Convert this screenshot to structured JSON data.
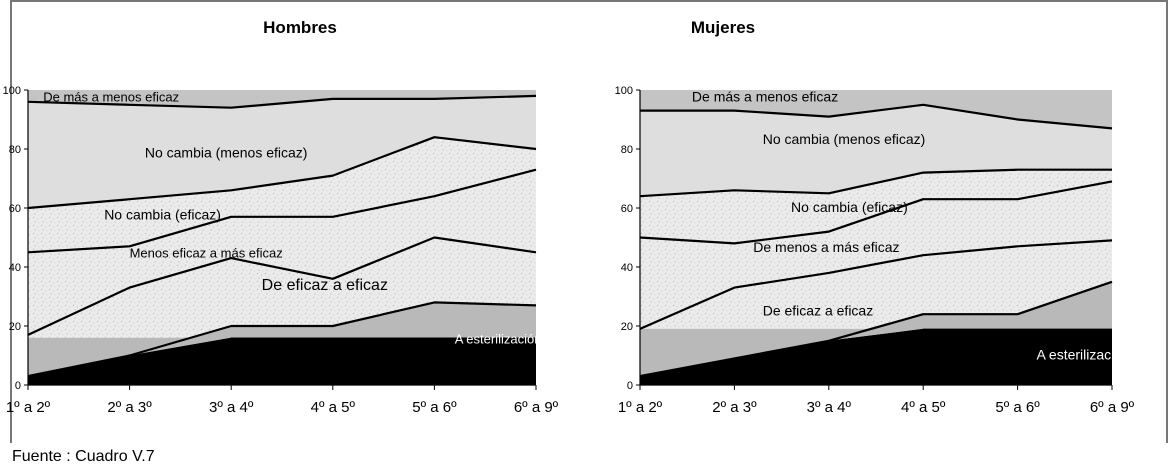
{
  "source": "Fuente : Cuadro V.7",
  "colors": {
    "top_band": "#c4c4c4",
    "light_band": "#dedede",
    "speckled_band": "#ebebeb",
    "sterilization_light": "#b9b9b9",
    "sterilization_dark": "#000000",
    "line": "#000000"
  },
  "chart_data": [
    {
      "type": "area",
      "title": "Hombres",
      "categories": [
        "1º a 2º",
        "2º a 3º",
        "3º a 4º",
        "4º a 5º",
        "5º a 6º",
        "6º a 9º"
      ],
      "ylim": [
        0,
        100
      ],
      "yticks": [
        0,
        20,
        40,
        60,
        80,
        100
      ],
      "grid": false,
      "boundaries": [
        {
          "name": "De eficaz a eficaz (lower)",
          "values": [
            3,
            10,
            20,
            20,
            28,
            27
          ]
        },
        {
          "name": "Menos eficaz a más eficaz (lower)",
          "values": [
            17,
            33,
            43,
            36,
            50,
            45
          ]
        },
        {
          "name": "No cambia (eficaz) (lower)",
          "values": [
            45,
            47,
            57,
            57,
            64,
            73
          ]
        },
        {
          "name": "No cambia (menos eficaz) (lower)",
          "values": [
            60,
            63,
            66,
            71,
            84,
            80
          ]
        },
        {
          "name": "De más a menos eficaz (lower)",
          "values": [
            96,
            95,
            94,
            97,
            97,
            98
          ]
        }
      ],
      "sterilization_band": 16,
      "labels": [
        {
          "text": "De más a menos eficaz",
          "x": 0.15,
          "y": 97.5,
          "size": 13
        },
        {
          "text": "No cambia (menos eficaz)",
          "x": 1.15,
          "y": 78.5,
          "size": 14
        },
        {
          "text": "No cambia (eficaz)",
          "x": 0.75,
          "y": 57.5,
          "size": 14
        },
        {
          "text": "Menos eficaz a más eficaz",
          "x": 1.0,
          "y": 44.5,
          "size": 13
        },
        {
          "text": "De eficaz a eficaz",
          "x": 2.3,
          "y": 33.5,
          "size": 16
        },
        {
          "text": "A esterilización",
          "x": 4.2,
          "y": 15.5,
          "size": 13
        }
      ]
    },
    {
      "type": "area",
      "title": "Mujeres",
      "categories": [
        "1º a 2º",
        "2º a 3º",
        "3º a 4º",
        "4º a 5º",
        "5º a 6º",
        "6º a 9º"
      ],
      "ylim": [
        0,
        100
      ],
      "yticks": [
        0,
        20,
        40,
        60,
        80,
        100
      ],
      "grid": false,
      "boundaries": [
        {
          "name": "De eficaz a eficaz (lower)",
          "values": [
            3,
            9,
            15,
            24,
            24,
            35
          ]
        },
        {
          "name": "De menos a más eficaz (lower)",
          "values": [
            19,
            33,
            38,
            44,
            47,
            49
          ]
        },
        {
          "name": "No cambia (eficaz) (lower)",
          "values": [
            50,
            48,
            52,
            63,
            63,
            69
          ]
        },
        {
          "name": "No cambia (menos eficaz) (lower)",
          "values": [
            64,
            66,
            65,
            72,
            73,
            73
          ]
        },
        {
          "name": "De más a menos eficaz (lower)",
          "values": [
            93,
            93,
            91,
            95,
            90,
            87
          ]
        }
      ],
      "sterilization_band": 19,
      "labels": [
        {
          "text": "De más a menos eficaz",
          "x": 0.55,
          "y": 97.5,
          "size": 14
        },
        {
          "text": "No cambia (menos eficaz)",
          "x": 1.3,
          "y": 83,
          "size": 14
        },
        {
          "text": "No cambia (eficaz)",
          "x": 1.6,
          "y": 60,
          "size": 14
        },
        {
          "text": "De menos a más eficaz",
          "x": 1.2,
          "y": 46.5,
          "size": 14
        },
        {
          "text": "De eficaz a eficaz",
          "x": 1.3,
          "y": 25,
          "size": 14
        },
        {
          "text": "A esterilización",
          "x": 4.2,
          "y": 10,
          "size": 14
        }
      ]
    }
  ]
}
